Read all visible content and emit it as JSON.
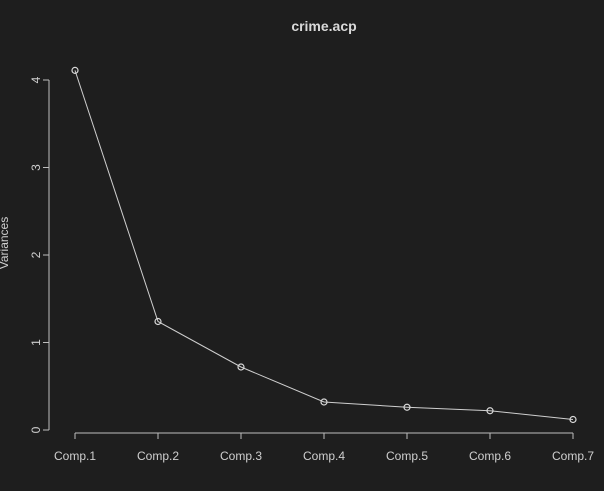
{
  "chart_data": {
    "type": "line",
    "title": "crime.acp",
    "xlabel": "",
    "ylabel": "Variances",
    "categories": [
      "Comp.1",
      "Comp.2",
      "Comp.3",
      "Comp.4",
      "Comp.5",
      "Comp.6",
      "Comp.7"
    ],
    "values": [
      4.11,
      1.24,
      0.72,
      0.32,
      0.26,
      0.22,
      0.12
    ],
    "ylim": [
      0,
      4
    ],
    "yticks": [
      "0",
      "1",
      "2",
      "3",
      "4"
    ],
    "markers": "open-circle",
    "grid": false,
    "legend": "none",
    "colors": {
      "background": "#1e1e1e",
      "foreground": "#cfcfcf"
    }
  }
}
